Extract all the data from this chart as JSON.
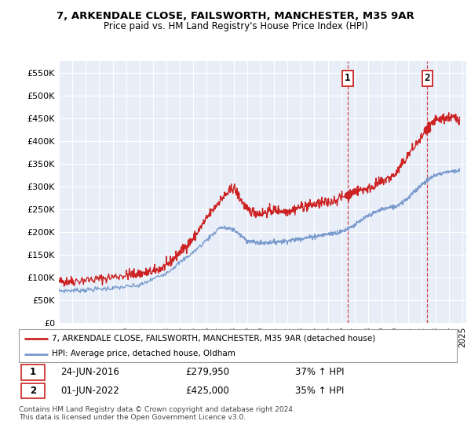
{
  "title1": "7, ARKENDALE CLOSE, FAILSWORTH, MANCHESTER, M35 9AR",
  "title2": "Price paid vs. HM Land Registry's House Price Index (HPI)",
  "ylim": [
    0,
    575000
  ],
  "yticks": [
    0,
    50000,
    100000,
    150000,
    200000,
    250000,
    300000,
    350000,
    400000,
    450000,
    500000,
    550000
  ],
  "ytick_labels": [
    "£0",
    "£50K",
    "£100K",
    "£150K",
    "£200K",
    "£250K",
    "£300K",
    "£350K",
    "£400K",
    "£450K",
    "£500K",
    "£550K"
  ],
  "bg_color": "#ffffff",
  "plot_bg": "#e8eef8",
  "legend_label_red": "7, ARKENDALE CLOSE, FAILSWORTH, MANCHESTER, M35 9AR (detached house)",
  "legend_label_blue": "HPI: Average price, detached house, Oldham",
  "point1_date": "24-JUN-2016",
  "point1_price": "£279,950",
  "point1_hpi": "37% ↑ HPI",
  "point1_x": 2016.48,
  "point1_y": 279950,
  "point2_date": "01-JUN-2022",
  "point2_price": "£425,000",
  "point2_hpi": "35% ↑ HPI",
  "point2_x": 2022.41,
  "point2_y": 425000,
  "vline1_x": 2016.48,
  "vline2_x": 2022.41,
  "footer": "Contains HM Land Registry data © Crown copyright and database right 2024.\nThis data is licensed under the Open Government Licence v3.0.",
  "red_color": "#cc2222",
  "blue_color": "#7799cc",
  "xmin": 1995.0,
  "xmax": 2025.3,
  "red_anchors_x": [
    1995,
    1996,
    1998,
    2000,
    2001,
    2002,
    2003,
    2004,
    2005,
    2006,
    2007,
    2008,
    2009,
    2010,
    2011,
    2012,
    2013,
    2014,
    2015,
    2016.48,
    2017,
    2018,
    2019,
    2020,
    2021,
    2022.41,
    2023,
    2024,
    2024.8
  ],
  "red_anchors_y": [
    90000,
    92000,
    96000,
    105000,
    108000,
    112000,
    125000,
    155000,
    185000,
    230000,
    270000,
    298000,
    248000,
    240000,
    248000,
    245000,
    255000,
    260000,
    265000,
    279950,
    290000,
    295000,
    310000,
    325000,
    370000,
    425000,
    445000,
    452000,
    448000
  ],
  "blue_anchors_x": [
    1995,
    1997,
    1999,
    2001,
    2003,
    2005,
    2007,
    2008,
    2009,
    2010,
    2011,
    2012,
    2013,
    2014,
    2015,
    2016,
    2017,
    2018,
    2019,
    2020,
    2021,
    2022,
    2023,
    2024,
    2024.8
  ],
  "blue_anchors_y": [
    70000,
    72000,
    76000,
    82000,
    110000,
    155000,
    210000,
    205000,
    180000,
    175000,
    178000,
    180000,
    185000,
    190000,
    195000,
    200000,
    215000,
    235000,
    250000,
    255000,
    275000,
    305000,
    325000,
    333000,
    335000
  ]
}
